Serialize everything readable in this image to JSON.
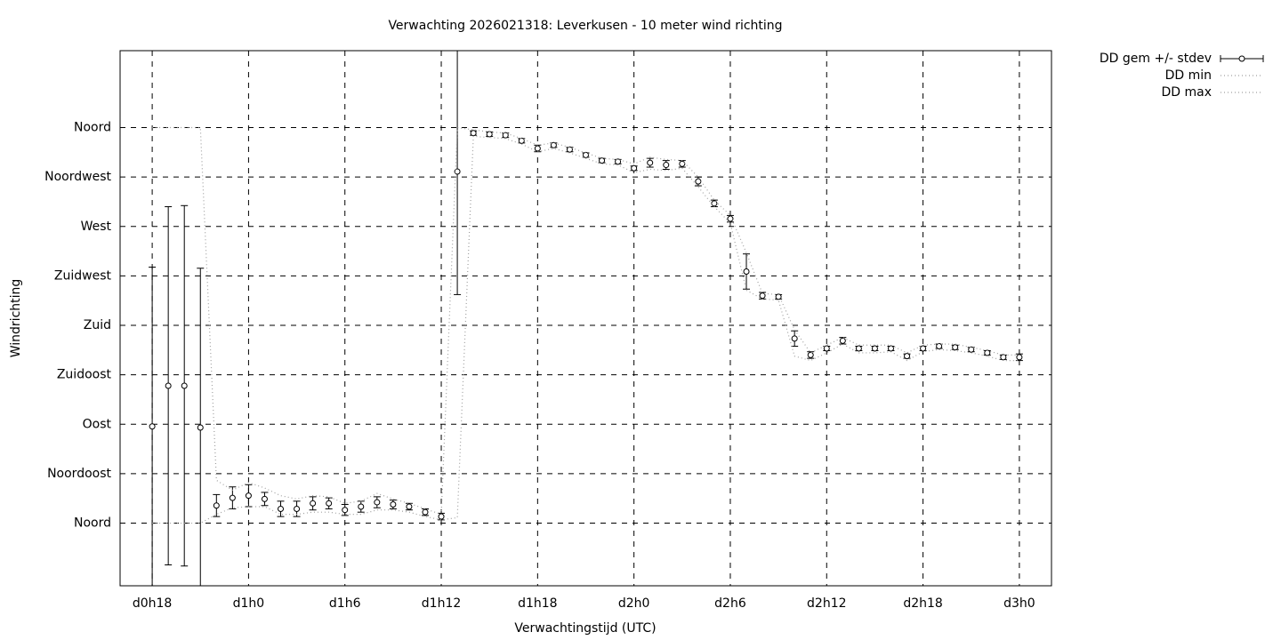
{
  "chart_data": {
    "type": "errorbar",
    "title": "Verwachting 2026021318: Leverkusen - 10 meter wind richting",
    "xlabel": "Verwachtingstijd (UTC)",
    "ylabel": "Windrichting",
    "x": [
      18,
      19,
      20,
      21,
      22,
      23,
      24,
      25,
      26,
      27,
      28,
      29,
      30,
      31,
      32,
      33,
      34,
      35,
      36,
      37,
      38,
      39,
      40,
      41,
      42,
      43,
      44,
      45,
      46,
      47,
      48,
      49,
      50,
      51,
      52,
      53,
      54,
      55,
      56,
      57,
      58,
      59,
      60,
      61,
      62,
      63,
      64,
      65,
      66,
      67,
      68,
      69,
      70,
      71,
      72
    ],
    "xlim": [
      16,
      74
    ],
    "xticks": [
      {
        "value": 18,
        "label": "d0h18"
      },
      {
        "value": 24,
        "label": "d1h0"
      },
      {
        "value": 30,
        "label": "d1h6"
      },
      {
        "value": 36,
        "label": "d1h12"
      },
      {
        "value": 42,
        "label": "d1h18"
      },
      {
        "value": 48,
        "label": "d2h0"
      },
      {
        "value": 54,
        "label": "d2h6"
      },
      {
        "value": 60,
        "label": "d2h12"
      },
      {
        "value": 66,
        "label": "d2h18"
      },
      {
        "value": 72,
        "label": "d3h0"
      }
    ],
    "ylim": [
      -57,
      430
    ],
    "yticks": [
      {
        "value": 0,
        "label": "Noord"
      },
      {
        "value": 45,
        "label": "Noordoost"
      },
      {
        "value": 90,
        "label": "Oost"
      },
      {
        "value": 135,
        "label": "Zuidoost"
      },
      {
        "value": 180,
        "label": "Zuid"
      },
      {
        "value": 225,
        "label": "Zuidwest"
      },
      {
        "value": 270,
        "label": "West"
      },
      {
        "value": 315,
        "label": "Noordwest"
      },
      {
        "value": 360,
        "label": "Noord"
      }
    ],
    "grid": true,
    "legend": "outside-top-right",
    "series": [
      {
        "name": "DD gem +/- stdev",
        "color": "#000000",
        "values": [
          88,
          125,
          125,
          87,
          16,
          23,
          25,
          22,
          13,
          13,
          18,
          18,
          12,
          15,
          19,
          17,
          15,
          10,
          6,
          320,
          355,
          354,
          353,
          348,
          341,
          344,
          340,
          335,
          330,
          329,
          323,
          328,
          326,
          327,
          311,
          291,
          277,
          229,
          207,
          206,
          168,
          153,
          159,
          166,
          159,
          159,
          159,
          152,
          159,
          161,
          160,
          158,
          155,
          151,
          151
        ],
        "errors": [
          145,
          163,
          164,
          145,
          10,
          10,
          10,
          6,
          7,
          7,
          6,
          5,
          5,
          5,
          5,
          4,
          3,
          3,
          3,
          112,
          2,
          2,
          2,
          2,
          3,
          2,
          2,
          2,
          2,
          2,
          2,
          4,
          4,
          3,
          4,
          3,
          3,
          16,
          3,
          2,
          7,
          3,
          2,
          3,
          2,
          2,
          2,
          2,
          2,
          2,
          2,
          2,
          2,
          2,
          3
        ]
      },
      {
        "name": "DD min",
        "color": "#a0a0a0",
        "values": [
          0,
          0,
          0,
          0,
          8,
          14,
          15,
          15,
          8,
          8,
          10,
          10,
          8,
          8,
          12,
          12,
          10,
          6,
          3,
          5,
          352,
          351,
          350,
          345,
          338,
          341,
          337,
          332,
          327,
          326,
          319,
          322,
          321,
          323,
          306,
          288,
          273,
          212,
          204,
          203,
          152,
          148,
          155,
          163,
          155,
          155,
          156,
          148,
          156,
          158,
          157,
          155,
          152,
          148,
          148
        ]
      },
      {
        "name": "DD max",
        "color": "#a0a0a0",
        "values": [
          360,
          360,
          360,
          360,
          39,
          30,
          37,
          32,
          25,
          22,
          25,
          24,
          18,
          20,
          27,
          22,
          18,
          13,
          8,
          360,
          358,
          356,
          355,
          350,
          344,
          346,
          342,
          337,
          332,
          331,
          327,
          333,
          331,
          330,
          315,
          294,
          280,
          246,
          209,
          208,
          176,
          155,
          162,
          169,
          162,
          162,
          162,
          155,
          162,
          163,
          163,
          160,
          157,
          153,
          153
        ]
      }
    ]
  }
}
